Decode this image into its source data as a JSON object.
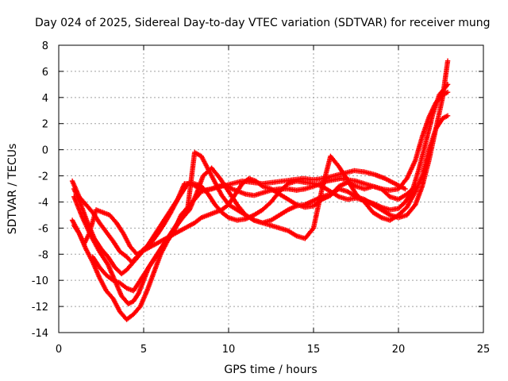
{
  "chart_data": {
    "type": "scatter",
    "title": "Day 024 of 2025, Sidereal Day-to-day VTEC variation (SDTVAR) for receiver mung",
    "xlabel": "GPS time / hours",
    "ylabel": "SDTVAR / TECUs",
    "xlim": [
      0,
      25
    ],
    "ylim": [
      -14,
      8
    ],
    "xticks": [
      0,
      5,
      10,
      15,
      20,
      25
    ],
    "yticks": [
      -14,
      -12,
      -10,
      -8,
      -6,
      -4,
      -2,
      0,
      2,
      4,
      6,
      8
    ],
    "grid": true,
    "legend": "none",
    "marker": "plus",
    "color": "#ff0000",
    "series": [
      {
        "x": [
          0.8,
          1.2,
          1.6,
          2.0,
          2.4,
          2.8,
          3.2,
          3.6,
          4.0,
          4.3,
          4.6,
          5.0,
          5.4,
          5.8,
          6.2,
          6.6,
          7.0,
          7.4,
          7.8,
          8.2,
          8.6,
          9.0,
          9.4,
          9.8,
          10.2,
          10.6,
          11.0,
          11.5,
          12.0,
          12.5,
          13.0,
          13.5,
          14.0,
          14.5,
          15.0,
          15.4,
          15.8,
          16.2,
          16.6,
          17.0,
          17.5,
          18.0,
          18.5,
          19.0,
          19.5,
          20.0,
          20.5,
          21.0,
          21.4,
          21.8,
          22.2,
          22.6,
          22.9
        ],
        "y": [
          -2.4,
          -3.6,
          -4.2,
          -4.8,
          -5.6,
          -6.3,
          -7.0,
          -7.8,
          -8.2,
          -8.6,
          -8.2,
          -7.6,
          -7.2,
          -6.5,
          -5.7,
          -4.8,
          -3.8,
          -2.6,
          -2.6,
          -2.9,
          -3.1,
          -3.0,
          -2.8,
          -2.7,
          -3.0,
          -3.2,
          -3.4,
          -3.5,
          -3.3,
          -3.1,
          -3.0,
          -3.0,
          -3.1,
          -3.0,
          -2.8,
          -2.6,
          -2.4,
          -2.3,
          -2.2,
          -2.3,
          -2.4,
          -2.6,
          -2.8,
          -3.0,
          -3.1,
          -3.0,
          -2.2,
          -0.8,
          1.0,
          2.5,
          3.6,
          4.2,
          4.4
        ]
      },
      {
        "x": [
          0.9,
          1.3,
          1.7,
          2.1,
          2.5,
          2.9,
          3.3,
          3.7,
          4.0,
          4.4,
          4.8,
          5.2,
          5.6,
          6.0,
          6.4,
          6.8,
          7.2,
          7.6,
          8.0,
          8.4,
          8.8,
          9.2,
          9.6,
          10.0,
          10.5,
          11.0,
          11.5,
          12.0,
          12.5,
          13.0,
          13.5,
          14.0,
          14.5,
          15.0,
          15.5,
          16.0,
          16.5,
          17.0,
          17.5,
          18.0,
          18.5,
          19.0,
          19.5,
          20.0,
          20.4,
          20.8,
          21.2,
          21.6,
          22.0,
          22.4,
          22.9
        ],
        "y": [
          -3.0,
          -4.2,
          -5.6,
          -6.8,
          -7.6,
          -8.2,
          -9.0,
          -9.5,
          -9.2,
          -8.6,
          -8.0,
          -7.4,
          -6.6,
          -5.8,
          -5.0,
          -4.2,
          -3.4,
          -2.6,
          -2.6,
          -2.8,
          -3.4,
          -4.2,
          -4.8,
          -5.2,
          -5.4,
          -5.3,
          -5.0,
          -4.6,
          -4.0,
          -3.2,
          -2.6,
          -2.4,
          -2.5,
          -2.6,
          -2.8,
          -3.2,
          -3.6,
          -3.8,
          -3.7,
          -3.9,
          -4.1,
          -4.4,
          -4.6,
          -4.5,
          -4.0,
          -3.2,
          -1.5,
          0.5,
          2.6,
          4.2,
          5.0
        ]
      },
      {
        "x": [
          0.9,
          1.4,
          1.9,
          2.4,
          2.9,
          3.3,
          3.7,
          4.1,
          4.4,
          4.7,
          5.0,
          5.3,
          5.7,
          6.1,
          6.5,
          6.9,
          7.3,
          7.7,
          8.1,
          8.5,
          9.0,
          9.5,
          10.0,
          10.5,
          11.0,
          11.5,
          12.0,
          12.5,
          13.0,
          13.5,
          14.0,
          14.5,
          15.0,
          15.5,
          16.0,
          16.5,
          17.0,
          17.5,
          18.0,
          18.5,
          19.0,
          19.5,
          20.0,
          20.5,
          21.0,
          21.4,
          21.8,
          22.2,
          22.6,
          22.9
        ],
        "y": [
          -3.6,
          -5.2,
          -6.6,
          -7.8,
          -8.8,
          -10.0,
          -11.2,
          -11.8,
          -11.6,
          -11.0,
          -10.0,
          -9.0,
          -8.2,
          -7.4,
          -6.6,
          -5.9,
          -5.2,
          -4.6,
          -3.4,
          -2.0,
          -1.4,
          -2.2,
          -3.2,
          -4.2,
          -5.0,
          -5.4,
          -5.6,
          -5.4,
          -5.0,
          -4.6,
          -4.3,
          -4.2,
          -3.9,
          -3.6,
          -3.4,
          -3.0,
          -3.2,
          -3.6,
          -3.8,
          -4.2,
          -4.6,
          -5.0,
          -5.2,
          -5.0,
          -4.2,
          -2.8,
          -0.8,
          1.6,
          4.0,
          6.8
        ]
      },
      {
        "x": [
          0.8,
          1.2,
          1.6,
          2.0,
          2.4,
          2.8,
          3.2,
          3.6,
          4.0,
          4.4,
          4.8,
          5.2,
          5.6,
          6.0,
          6.4,
          6.8,
          7.2,
          7.6,
          8.0,
          8.4,
          8.8,
          9.2,
          9.6,
          10.0,
          10.5,
          11.0,
          11.5,
          12.0,
          12.5,
          13.0,
          13.5,
          14.0,
          14.5,
          15.0,
          15.5,
          16.0,
          16.5,
          17.0,
          17.5,
          18.0,
          18.5,
          19.0,
          19.5,
          20.0,
          20.5,
          21.0,
          21.4,
          21.8,
          22.2,
          22.6,
          22.9
        ],
        "y": [
          -5.4,
          -6.4,
          -7.6,
          -8.6,
          -9.8,
          -10.8,
          -11.4,
          -12.4,
          -13.0,
          -12.6,
          -12.0,
          -10.8,
          -9.4,
          -8.0,
          -7.0,
          -6.2,
          -5.0,
          -4.4,
          -0.2,
          -0.5,
          -1.5,
          -2.5,
          -3.5,
          -4.2,
          -4.6,
          -5.0,
          -5.4,
          -5.6,
          -5.8,
          -6.0,
          -6.2,
          -6.6,
          -6.8,
          -6.0,
          -3.0,
          -0.5,
          -1.3,
          -2.3,
          -3.4,
          -4.0,
          -4.8,
          -5.2,
          -5.4,
          -5.0,
          -4.4,
          -3.2,
          -2.0,
          0.0,
          1.6,
          2.4,
          2.6
        ]
      },
      {
        "x": [
          0.9,
          1.2,
          1.5,
          1.8,
          2.2,
          2.6,
          3.0,
          3.4,
          3.8,
          4.2,
          4.6,
          8.0,
          8.4,
          8.8,
          9.2,
          9.6,
          10.0,
          10.4,
          10.8,
          11.2,
          11.6,
          12.0,
          12.5,
          13.0,
          13.5,
          14.0,
          14.5,
          15.0,
          15.5,
          16.0,
          16.5,
          17.0,
          17.5,
          18.0,
          18.5,
          19.0,
          19.5,
          20.0,
          20.5,
          21.0
        ],
        "y": [
          -5.8,
          -6.4,
          -7.2,
          -6.4,
          -4.6,
          -4.8,
          -5.0,
          -5.6,
          -6.4,
          -7.4,
          -8.0,
          -5.6,
          -5.2,
          -5.0,
          -4.8,
          -4.6,
          -4.2,
          -3.4,
          -2.6,
          -2.2,
          -2.4,
          -2.8,
          -3.0,
          -3.4,
          -3.8,
          -4.2,
          -4.4,
          -4.3,
          -3.8,
          -3.5,
          -2.8,
          -2.5,
          -2.8,
          -3.0,
          -2.8,
          -3.0,
          -3.6,
          -3.8,
          -3.4,
          -2.8
        ]
      },
      {
        "x": [
          2.0,
          2.4,
          2.8,
          3.2,
          3.6,
          4.0,
          4.4,
          4.8,
          5.2,
          5.6,
          6.0,
          6.4,
          6.8,
          7.2,
          7.6,
          8.0,
          8.4,
          9.0,
          9.6,
          10.2,
          10.8,
          11.4,
          12.0,
          12.6,
          13.2,
          13.8,
          14.4,
          15.0,
          15.6,
          16.2,
          16.8,
          17.4,
          18.0,
          18.6,
          19.2,
          19.8,
          20.4
        ],
        "y": [
          -8.2,
          -9.0,
          -9.6,
          -10.0,
          -10.2,
          -10.6,
          -10.8,
          -10.0,
          -9.2,
          -8.4,
          -7.6,
          -6.8,
          -6.0,
          -5.2,
          -4.4,
          -3.8,
          -3.2,
          -3.0,
          -2.8,
          -2.6,
          -2.4,
          -2.5,
          -2.6,
          -2.5,
          -2.4,
          -2.3,
          -2.2,
          -2.3,
          -2.2,
          -2.0,
          -1.8,
          -1.6,
          -1.7,
          -1.9,
          -2.2,
          -2.6,
          -3.0
        ]
      }
    ]
  }
}
